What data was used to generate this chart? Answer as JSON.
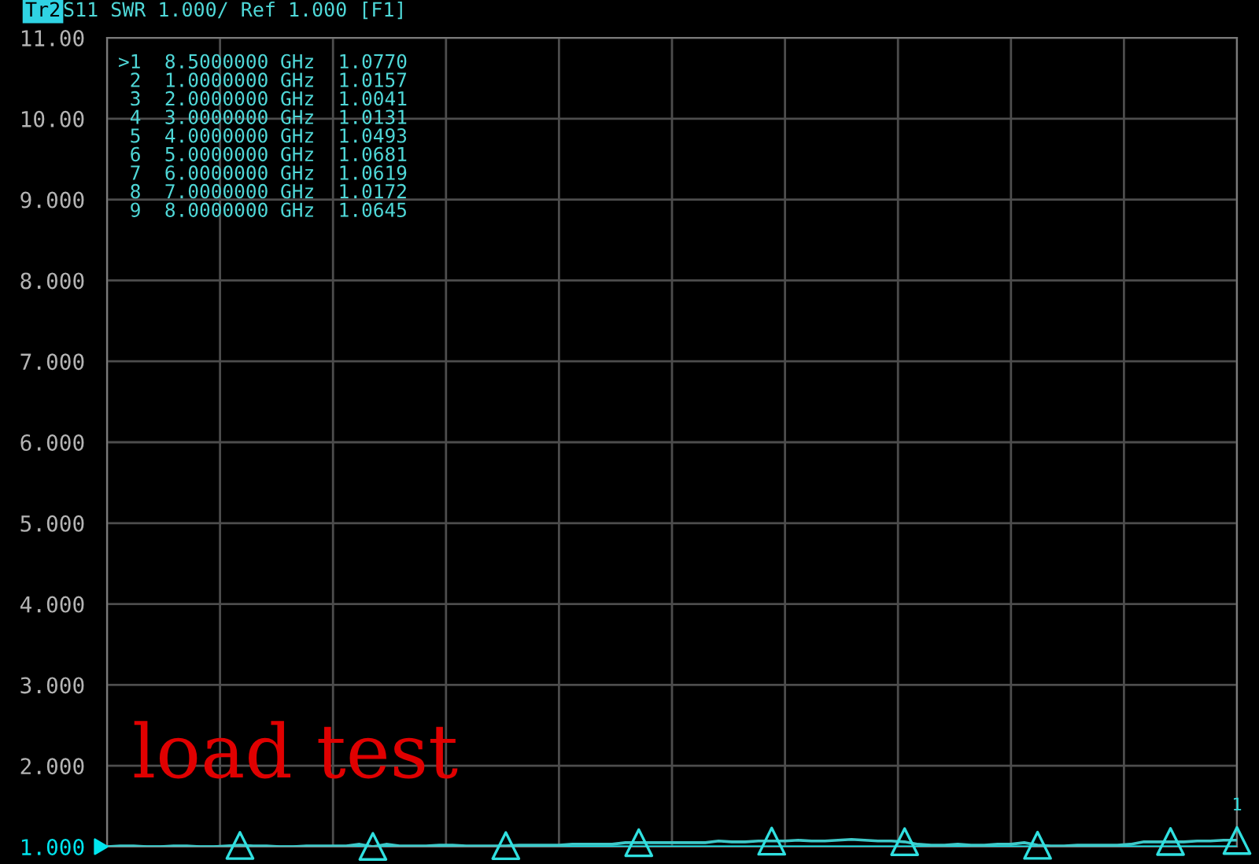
{
  "chart_data": {
    "type": "line",
    "title": "Tr2",
    "subtitle": "S11 SWR 1.000/ Ref 1.000 [F1]",
    "categories": [
      null,
      null,
      null,
      null,
      null,
      null,
      null,
      null,
      null,
      null,
      null,
      null,
      null,
      null,
      null,
      null,
      null,
      null,
      null,
      null,
      null,
      null,
      null,
      null,
      null,
      null,
      null,
      null,
      null,
      null,
      null,
      null,
      null,
      null,
      null,
      null,
      null,
      null,
      null,
      null,
      null,
      null,
      null,
      null,
      null,
      null,
      null,
      null,
      null,
      null,
      null,
      null,
      null,
      null,
      null,
      null,
      null,
      null,
      null,
      null,
      null,
      null,
      null,
      null,
      null,
      null,
      null,
      null,
      null,
      null,
      null,
      null,
      null,
      null,
      null,
      null,
      null,
      null,
      null,
      null,
      null,
      null,
      null,
      null,
      null,
      null
    ],
    "ylim": [
      1,
      11
    ],
    "yticks": [
      {
        "value": 1,
        "label": "1.000"
      },
      {
        "value": 2,
        "label": "2.000"
      },
      {
        "value": 3,
        "label": "3.000"
      },
      {
        "value": 4,
        "label": "4.000"
      },
      {
        "value": 5,
        "label": "5.000"
      },
      {
        "value": 6,
        "label": "6.000"
      },
      {
        "value": 7,
        "label": "7.000"
      },
      {
        "value": 8,
        "label": "8.000"
      },
      {
        "value": 9,
        "label": "9.000"
      },
      {
        "value": 10,
        "label": "10.00"
      },
      {
        "value": 11,
        "label": "11.00"
      }
    ],
    "tick_labels": "y",
    "grid": true,
    "ref_lines": [
      {
        "axis": "y",
        "value": 1,
        "label": null,
        "color": "#00e5ee"
      }
    ],
    "series": [
      {
        "color": "#3ec8c8",
        "line_style": "solid",
        "values": [
          1.0,
          1.01,
          1.01,
          1.0,
          1.0,
          1.01,
          1.01,
          1.0,
          1.0,
          1.01,
          1.02,
          1.01,
          1.01,
          1.0,
          1.0,
          1.01,
          1.01,
          1.01,
          1.01,
          1.03,
          1.0,
          1.03,
          1.01,
          1.01,
          1.01,
          1.02,
          1.02,
          1.01,
          1.01,
          1.01,
          1.01,
          1.02,
          1.02,
          1.02,
          1.02,
          1.03,
          1.03,
          1.03,
          1.03,
          1.05,
          1.05,
          1.05,
          1.05,
          1.05,
          1.05,
          1.05,
          1.07,
          1.06,
          1.06,
          1.07,
          1.07,
          1.07,
          1.08,
          1.07,
          1.07,
          1.08,
          1.09,
          1.08,
          1.07,
          1.07,
          1.06,
          1.03,
          1.02,
          1.02,
          1.03,
          1.02,
          1.02,
          1.03,
          1.03,
          1.05,
          1.02,
          1.01,
          1.01,
          1.02,
          1.02,
          1.02,
          1.02,
          1.03,
          1.06,
          1.06,
          1.06,
          1.06,
          1.07,
          1.07,
          1.08,
          1.08
        ]
      },
      {
        "type": "scatter",
        "color": "#30e0e0",
        "marker": "triangle",
        "values": [
          null,
          null,
          null,
          null,
          null,
          null,
          null,
          null,
          null,
          null,
          1.0157,
          null,
          null,
          null,
          null,
          null,
          null,
          null,
          null,
          null,
          1.0041,
          null,
          null,
          null,
          null,
          null,
          null,
          null,
          null,
          null,
          1.0131,
          null,
          null,
          null,
          null,
          null,
          null,
          null,
          null,
          null,
          1.0493,
          null,
          null,
          null,
          null,
          null,
          null,
          null,
          null,
          null,
          1.0681,
          null,
          null,
          null,
          null,
          null,
          null,
          null,
          null,
          null,
          1.0619,
          null,
          null,
          null,
          null,
          null,
          null,
          null,
          null,
          null,
          1.0172,
          null,
          null,
          null,
          null,
          null,
          null,
          null,
          null,
          null,
          1.0645,
          null,
          null,
          null,
          null,
          1.077
        ]
      }
    ],
    "annotations": [
      ">1  8.5000000 GHz  1.0770",
      " 2  1.0000000 GHz  1.0157",
      " 3  2.0000000 GHz  1.0041",
      " 4  3.0000000 GHz  1.0131",
      " 5  4.0000000 GHz  1.0493",
      " 6  5.0000000 GHz  1.0681",
      " 7  6.0000000 GHz  1.0619",
      " 8  7.0000000 GHz  1.0172",
      " 9  8.0000000 GHz  1.0645",
      {
        "text": "1",
        "y": 1.077
      },
      "load test"
    ]
  }
}
